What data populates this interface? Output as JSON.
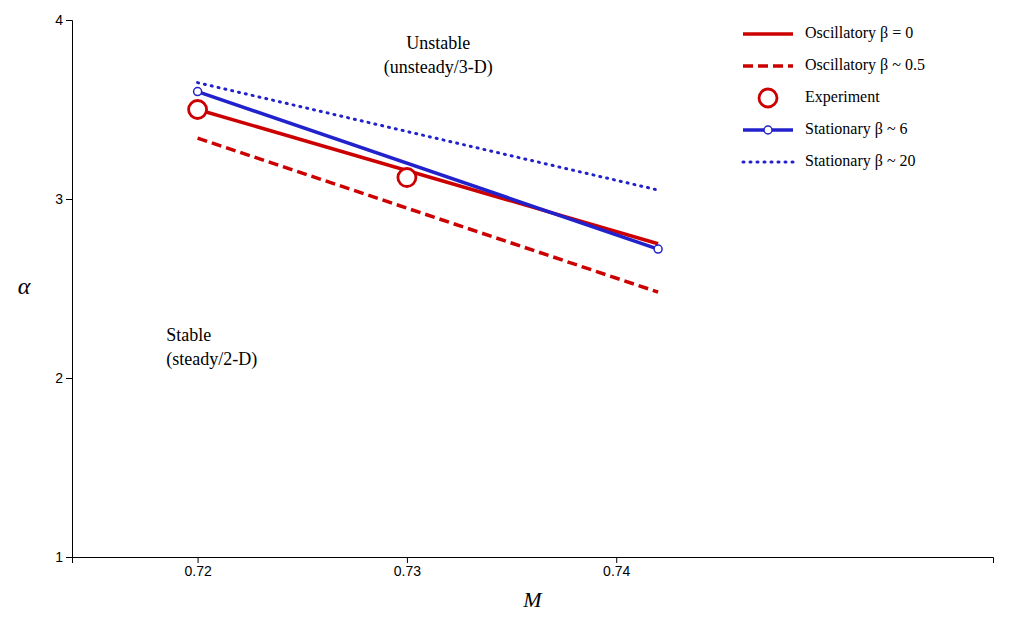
{
  "chart_data": {
    "type": "line",
    "x_label": "M",
    "y_label": "α",
    "xlim": [
      0.714,
      0.758
    ],
    "ylim": [
      1,
      4
    ],
    "xticks": [
      0.72,
      0.73,
      0.74
    ],
    "yticks": [
      1,
      2,
      3,
      4
    ],
    "grid": false,
    "legend": "upper right",
    "series": [
      {
        "name": "Oscillatory β = 0",
        "color": "#cc0000",
        "line_style": "solid",
        "x": [
          0.72,
          0.742
        ],
        "values": [
          3.5,
          2.75
        ]
      },
      {
        "name": "Oscillatory β ~ 0.5",
        "color": "#cc0000",
        "line_style": "dashed",
        "x": [
          0.72,
          0.742
        ],
        "values": [
          3.34,
          2.48
        ]
      },
      {
        "name": "Experiment",
        "type": "scatter",
        "marker": "circle",
        "color": "#cc0000",
        "x": [
          0.72,
          0.73
        ],
        "values": [
          3.5,
          3.12
        ]
      },
      {
        "name": "Stationary β ~ 6",
        "color": "#2222cc",
        "line_style": "solid",
        "marker": "circle",
        "x": [
          0.72,
          0.742
        ],
        "values": [
          3.6,
          2.72
        ]
      },
      {
        "name": "Stationary β ~ 20",
        "color": "#2222cc",
        "line_style": "dotted",
        "x": [
          0.72,
          0.742
        ],
        "values": [
          3.65,
          3.05
        ]
      }
    ],
    "annotations": [
      {
        "text": "Unstable\n(unsteady/3-D)",
        "x": 0.7315,
        "y": 3.68
      },
      {
        "text": "Stable\n(steady/2-D)",
        "x": 0.7185,
        "y": 2.05
      }
    ]
  }
}
